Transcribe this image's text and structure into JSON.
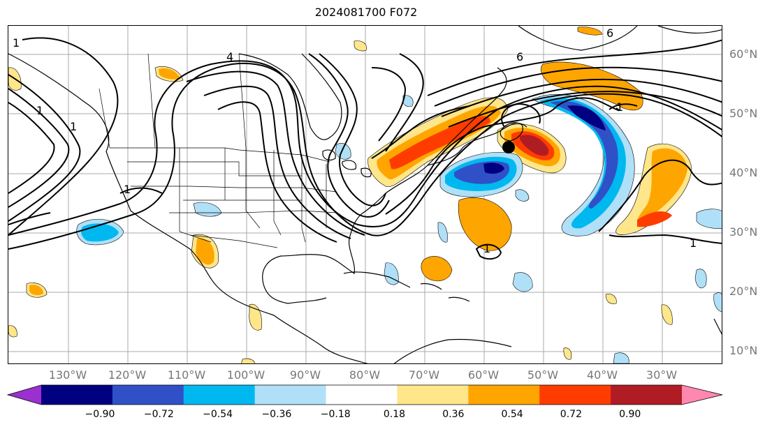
{
  "title": "2024081700 F072",
  "lat_labels": [
    "60°N",
    "50°N",
    "40°N",
    "30°N",
    "20°N",
    "10°N"
  ],
  "lon_labels": [
    "130°W",
    "120°W",
    "110°W",
    "100°W",
    "90°W",
    "80°W",
    "70°W",
    "60°W",
    "50°W",
    "40°W",
    "30°W"
  ],
  "contour_labels": [
    "1",
    "1",
    "1",
    "1",
    "4",
    "6",
    "6",
    "1",
    "1",
    "1"
  ],
  "colorbar": {
    "ticks": [
      "−0.90",
      "−0.72",
      "−0.54",
      "−0.36",
      "−0.18",
      "0.18",
      "0.36",
      "0.54",
      "0.72",
      "0.90"
    ],
    "colors": [
      "#9b30d0",
      "#000080",
      "#3050c8",
      "#00b8f0",
      "#b0e0f8",
      "#ffffff",
      "#ffe68a",
      "#ffa500",
      "#ff3c00",
      "#b01c24",
      "#ff88b0"
    ]
  },
  "storm_marker": {
    "lat": "44.5°N",
    "lon": "57°W"
  }
}
